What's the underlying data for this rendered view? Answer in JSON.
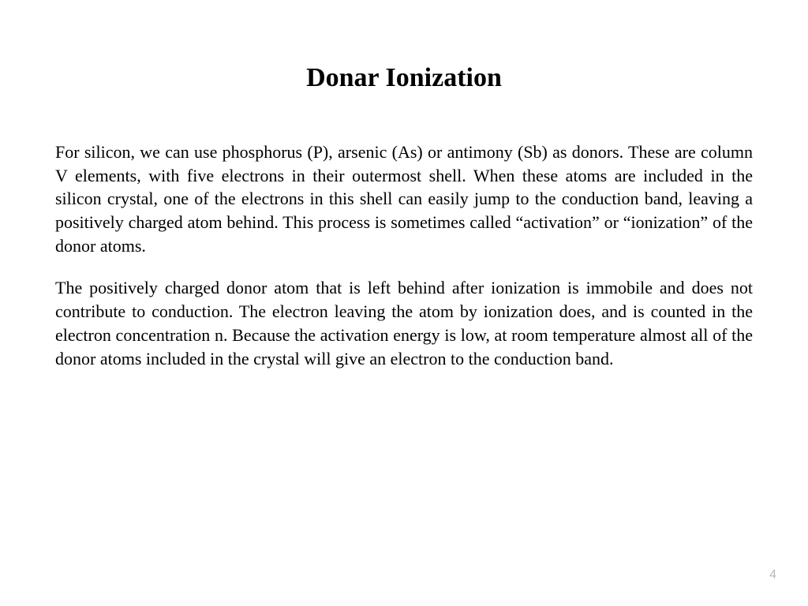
{
  "slide": {
    "title": "Donar Ionization",
    "paragraph1": "For silicon, we can use phosphorus (P), arsenic (As) or antimony (Sb) as donors. These are column V elements, with five electrons in their outermost shell. When these atoms are included in the silicon crystal, one of the electrons in this shell can easily jump to the conduction band, leaving a positively charged atom behind. This process is sometimes called “activation” or “ionization” of the donor atoms.",
    "paragraph2": "The positively charged donor atom that is left behind after ionization is immobile and does not contribute to conduction. The electron leaving the atom by ionization does, and is counted in the electron concentration n. Because the activation energy is low, at room temperature almost all of the donor atoms included in the crystal will give an electron to the conduction band.",
    "page_number": "4"
  },
  "styling": {
    "background_color": "#ffffff",
    "title_color": "#000000",
    "title_fontsize": 34,
    "title_fontweight": "bold",
    "body_color": "#000000",
    "body_fontsize": 22,
    "body_align": "justify",
    "page_number_color": "#b8b8b8",
    "page_number_fontsize": 16,
    "font_family": "Times New Roman"
  }
}
